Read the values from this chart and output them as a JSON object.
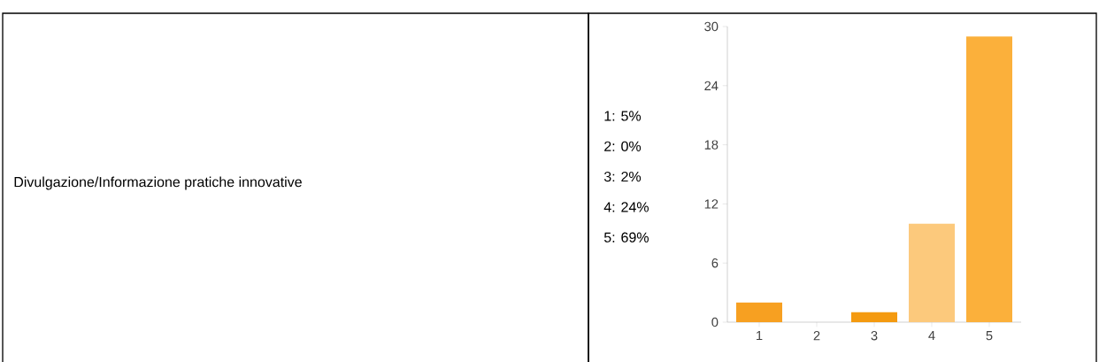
{
  "chart_data": {
    "type": "bar",
    "title": "Divulgazione/Informazione pratiche innovative",
    "annotations": [
      "1: 5%",
      "2: 0%",
      "3: 2%",
      "4: 24%",
      "5: 69%"
    ],
    "categories": [
      "1",
      "2",
      "3",
      "4",
      "5"
    ],
    "values": [
      2,
      0,
      1,
      10,
      29
    ],
    "colors": [
      "#f7a021",
      "#f7a021",
      "#f49a10",
      "#fcc97c",
      "#fbb03b"
    ],
    "ylim": [
      0,
      30
    ],
    "yticks": [
      0,
      6,
      12,
      18,
      24,
      30
    ],
    "grid": false
  }
}
